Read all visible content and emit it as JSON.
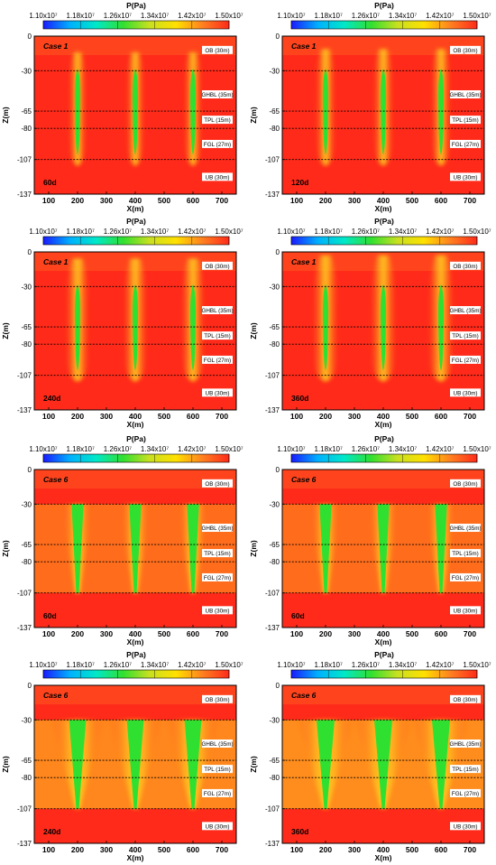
{
  "legend": {
    "title": "P(Pa)",
    "tick_labels": [
      "1.10x10⁷",
      "1.18x10⁷",
      "1.26x10⁷",
      "1.34x10⁷",
      "1.42x10⁷",
      "1.50x10⁷"
    ],
    "colormap": [
      "#1a1aff",
      "#00b0ff",
      "#00e8c8",
      "#30e030",
      "#c8e020",
      "#ffe000",
      "#ff8020",
      "#ff2a1a"
    ]
  },
  "colors": {
    "background": "#ff2a1a",
    "well_core": "#30e030",
    "well_halo": "#ffd020",
    "layer_line": "#000000",
    "label_box": "#ffffff"
  },
  "layer_labels": [
    "OB (30m)",
    "GHBL (35m)",
    "TPL (15m)",
    "FGL (27m)",
    "UB (30m)"
  ],
  "axis_labels": {
    "x": "X(m)",
    "y": "Z(m)"
  },
  "chart_data": [
    {
      "type": "heatmap",
      "case_label": "Case 1",
      "time_label": "60d",
      "x_ticks": [
        100,
        200,
        300,
        400,
        500,
        600,
        700
      ],
      "xlim": [
        50,
        750
      ],
      "y_ticks": [
        0,
        -30,
        -65,
        -80,
        -107,
        -137
      ],
      "ylim": [
        -137,
        0
      ],
      "layer_boundaries": [
        -30,
        -65,
        -80,
        -107
      ],
      "wells_x": [
        200,
        400,
        600
      ],
      "well_z_range": [
        -28,
        -103
      ],
      "plume_width": 0.15,
      "plume_top_extent": 0.5
    },
    {
      "type": "heatmap",
      "case_label": "Case 1",
      "time_label": "120d",
      "x_ticks": [
        100,
        200,
        300,
        400,
        500,
        600,
        700
      ],
      "xlim": [
        50,
        750
      ],
      "y_ticks": [
        0,
        -30,
        -65,
        -80,
        -107,
        -137
      ],
      "ylim": [
        -137,
        0
      ],
      "layer_boundaries": [
        -30,
        -65,
        -80,
        -107
      ],
      "wells_x": [
        200,
        400,
        600
      ],
      "well_z_range": [
        -28,
        -103
      ],
      "plume_width": 0.2,
      "plume_top_extent": 0.6
    },
    {
      "type": "heatmap",
      "case_label": "Case 1",
      "time_label": "240d",
      "x_ticks": [
        100,
        200,
        300,
        400,
        500,
        600,
        700
      ],
      "xlim": [
        50,
        750
      ],
      "y_ticks": [
        0,
        -30,
        -65,
        -80,
        -107,
        -137
      ],
      "ylim": [
        -137,
        0
      ],
      "layer_boundaries": [
        -30,
        -65,
        -80,
        -107
      ],
      "wells_x": [
        200,
        400,
        600
      ],
      "well_z_range": [
        -28,
        -103
      ],
      "plume_width": 0.3,
      "plume_top_extent": 0.8
    },
    {
      "type": "heatmap",
      "case_label": "Case 1",
      "time_label": "360d",
      "x_ticks": [
        100,
        200,
        300,
        400,
        500,
        600,
        700
      ],
      "xlim": [
        50,
        750
      ],
      "y_ticks": [
        0,
        -30,
        -65,
        -80,
        -107,
        -137
      ],
      "ylim": [
        -137,
        0
      ],
      "layer_boundaries": [
        -30,
        -65,
        -80,
        -107
      ],
      "wells_x": [
        200,
        400,
        600
      ],
      "well_z_range": [
        -28,
        -103
      ],
      "plume_width": 0.35,
      "plume_top_extent": 0.9
    },
    {
      "type": "heatmap",
      "case_label": "Case 6",
      "time_label": "60d",
      "x_ticks": [
        100,
        200,
        300,
        400,
        500,
        600,
        700
      ],
      "xlim": [
        50,
        750
      ],
      "y_ticks": [
        0,
        -30,
        -65,
        -80,
        -107,
        -137
      ],
      "ylim": [
        -137,
        0
      ],
      "layer_boundaries": [
        -30,
        -65,
        -80,
        -107
      ],
      "wells_x": [
        200,
        400,
        600
      ],
      "well_z_range": [
        -30,
        -107
      ],
      "plume_width": 0.45,
      "plume_top_extent": 0.0
    },
    {
      "type": "heatmap",
      "case_label": "Case 6",
      "time_label": "60d",
      "x_ticks": [
        100,
        200,
        300,
        400,
        500,
        600,
        700
      ],
      "xlim": [
        50,
        750
      ],
      "y_ticks": [
        0,
        -30,
        -65,
        -80,
        -107,
        -137
      ],
      "ylim": [
        -137,
        0
      ],
      "layer_boundaries": [
        -30,
        -65,
        -80,
        -107
      ],
      "wells_x": [
        200,
        400,
        600
      ],
      "well_z_range": [
        -30,
        -107
      ],
      "plume_width": 0.45,
      "plume_top_extent": 0.0
    },
    {
      "type": "heatmap",
      "case_label": "Case 6",
      "time_label": "240d",
      "x_ticks": [
        100,
        200,
        300,
        400,
        500,
        600,
        700
      ],
      "xlim": [
        50,
        750
      ],
      "y_ticks": [
        0,
        -30,
        -65,
        -80,
        -107,
        -137
      ],
      "ylim": [
        -137,
        0
      ],
      "layer_boundaries": [
        -30,
        -65,
        -80,
        -107
      ],
      "wells_x": [
        200,
        400,
        600
      ],
      "well_z_range": [
        -30,
        -107
      ],
      "plume_width": 0.9,
      "plume_top_extent": 0.0
    },
    {
      "type": "heatmap",
      "case_label": "Case 6",
      "time_label": "360d",
      "x_ticks": [
        100,
        200,
        300,
        400,
        500,
        600,
        700
      ],
      "xlim": [
        50,
        750
      ],
      "y_ticks": [
        0,
        -30,
        -65,
        -80,
        -107,
        -137
      ],
      "ylim": [
        -137,
        0
      ],
      "layer_boundaries": [
        -30,
        -65,
        -80,
        -107
      ],
      "wells_x": [
        200,
        400,
        600
      ],
      "well_z_range": [
        -30,
        -107
      ],
      "plume_width": 1.0,
      "plume_top_extent": 0.0
    }
  ]
}
